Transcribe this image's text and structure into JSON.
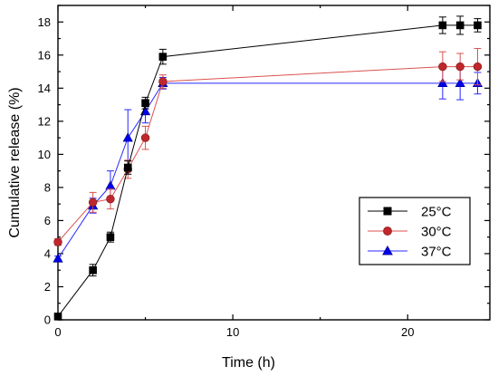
{
  "chart_data": {
    "type": "line",
    "xlabel": "Time (h)",
    "ylabel": "Cumulative release (%)",
    "xlim": [
      0,
      24.7
    ],
    "ylim": [
      0,
      19
    ],
    "xticks": [
      0,
      10,
      20
    ],
    "yticks": [
      0,
      2,
      4,
      6,
      8,
      10,
      12,
      14,
      16,
      18
    ],
    "grid": false,
    "legend_position": "center-right",
    "series": [
      {
        "name": "25°C",
        "color": "#000000",
        "fill": "#000000",
        "marker": "square",
        "x": [
          0,
          2,
          3,
          4,
          5,
          6,
          22,
          23,
          24
        ],
        "y": [
          0.2,
          3.0,
          5.0,
          9.2,
          13.1,
          15.9,
          17.8,
          17.8,
          17.8
        ],
        "err": [
          0.1,
          0.35,
          0.3,
          0.4,
          0.35,
          0.45,
          0.5,
          0.55,
          0.4
        ]
      },
      {
        "name": "30°C",
        "color": "#d9534f",
        "fill": "#c0272d",
        "marker": "circle",
        "x": [
          0,
          2,
          3,
          4,
          5,
          6,
          22,
          23,
          24
        ],
        "y": [
          4.7,
          7.1,
          7.3,
          9.1,
          11.0,
          14.4,
          15.3,
          15.3,
          15.3
        ],
        "err": [
          0.2,
          0.6,
          0.6,
          0.55,
          0.7,
          0.4,
          0.9,
          0.8,
          1.1
        ]
      },
      {
        "name": "37°C",
        "color": "#2828ff",
        "fill": "#0000ee",
        "marker": "triangle",
        "x": [
          0,
          2,
          3,
          4,
          5,
          6,
          22,
          23,
          24
        ],
        "y": [
          3.7,
          6.9,
          8.1,
          11.0,
          12.6,
          14.3,
          14.3,
          14.3,
          14.3
        ],
        "err": [
          0.15,
          0.45,
          0.9,
          1.7,
          0.7,
          0.35,
          0.95,
          1.0,
          0.65
        ]
      }
    ]
  }
}
